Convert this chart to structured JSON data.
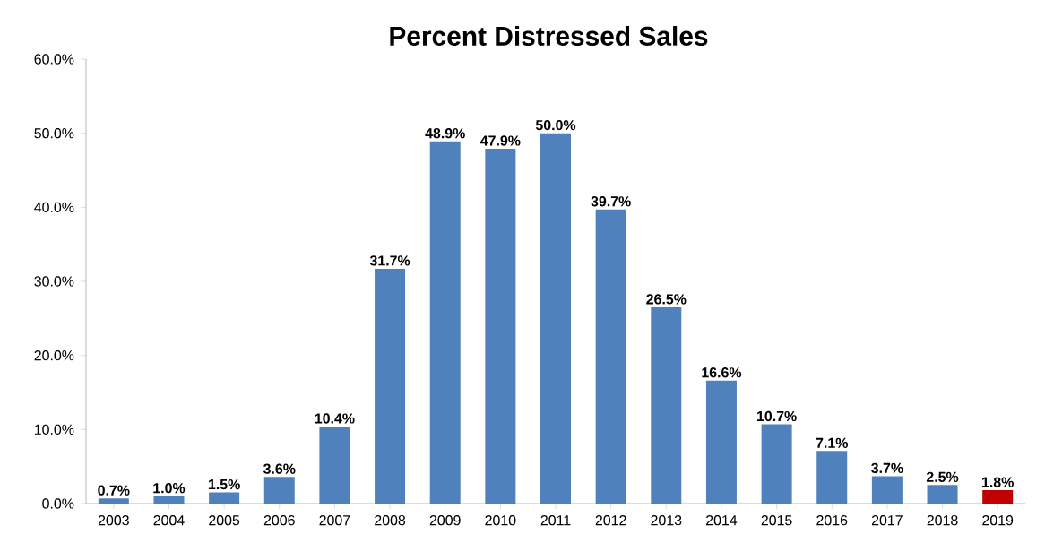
{
  "chart_data": {
    "type": "bar",
    "title": "Percent Distressed Sales",
    "categories": [
      "2003",
      "2004",
      "2005",
      "2006",
      "2007",
      "2008",
      "2009",
      "2010",
      "2011",
      "2012",
      "2013",
      "2014",
      "2015",
      "2016",
      "2017",
      "2018",
      "2019"
    ],
    "values": [
      0.7,
      1.0,
      1.5,
      3.6,
      10.4,
      31.7,
      48.9,
      47.9,
      50.0,
      39.7,
      26.5,
      16.6,
      10.7,
      7.1,
      3.7,
      2.5,
      1.8
    ],
    "colors": [
      "#4f81bd",
      "#4f81bd",
      "#4f81bd",
      "#4f81bd",
      "#4f81bd",
      "#4f81bd",
      "#4f81bd",
      "#4f81bd",
      "#4f81bd",
      "#4f81bd",
      "#4f81bd",
      "#4f81bd",
      "#4f81bd",
      "#4f81bd",
      "#4f81bd",
      "#4f81bd",
      "#c00000"
    ],
    "value_labels": [
      "0.7%",
      "1.0%",
      "1.5%",
      "3.6%",
      "10.4%",
      "31.7%",
      "48.9%",
      "47.9%",
      "50.0%",
      "39.7%",
      "26.5%",
      "16.6%",
      "10.7%",
      "7.1%",
      "3.7%",
      "2.5%",
      "1.8%"
    ],
    "ylim": [
      0,
      60
    ],
    "yticks": [
      {
        "value": 0,
        "label": "0.0%"
      },
      {
        "value": 10,
        "label": "10.0%"
      },
      {
        "value": 20,
        "label": "20.0%"
      },
      {
        "value": 30,
        "label": "30.0%"
      },
      {
        "value": 40,
        "label": "40.0%"
      },
      {
        "value": 50,
        "label": "50.0%"
      },
      {
        "value": 60,
        "label": "60.0%"
      }
    ]
  }
}
